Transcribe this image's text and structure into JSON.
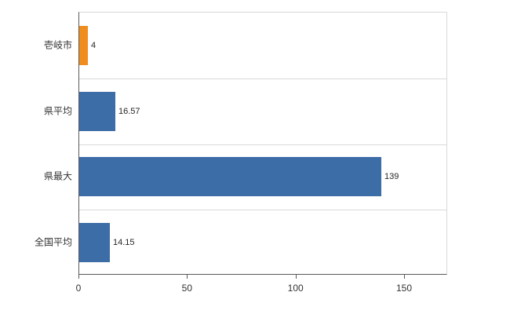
{
  "chart_data": {
    "type": "bar",
    "orientation": "horizontal",
    "title": "",
    "xlabel": "",
    "ylabel": "",
    "categories": [
      "壱岐市",
      "県平均",
      "県最大",
      "全国平均"
    ],
    "values": [
      4,
      16.57,
      139,
      14.15
    ],
    "value_labels": [
      "4",
      "16.57",
      "139",
      "14.15"
    ],
    "bar_colors": [
      "#ef8d1e",
      "#3c6da6",
      "#3c6da6",
      "#3c6da6"
    ],
    "x_ticks": [
      0,
      50,
      100,
      150
    ],
    "x_tick_labels": [
      "0",
      "50",
      "100",
      "150"
    ],
    "xlim": [
      0,
      169
    ],
    "grid": "horizontal-category-boundaries",
    "legend_position": "none"
  },
  "colors": {
    "bar_blue": "#3c6da6",
    "bar_orange": "#ef8d1e",
    "grid": "#d9d9d9",
    "axis": "#595959",
    "text": "#333333",
    "background": "#ffffff"
  }
}
